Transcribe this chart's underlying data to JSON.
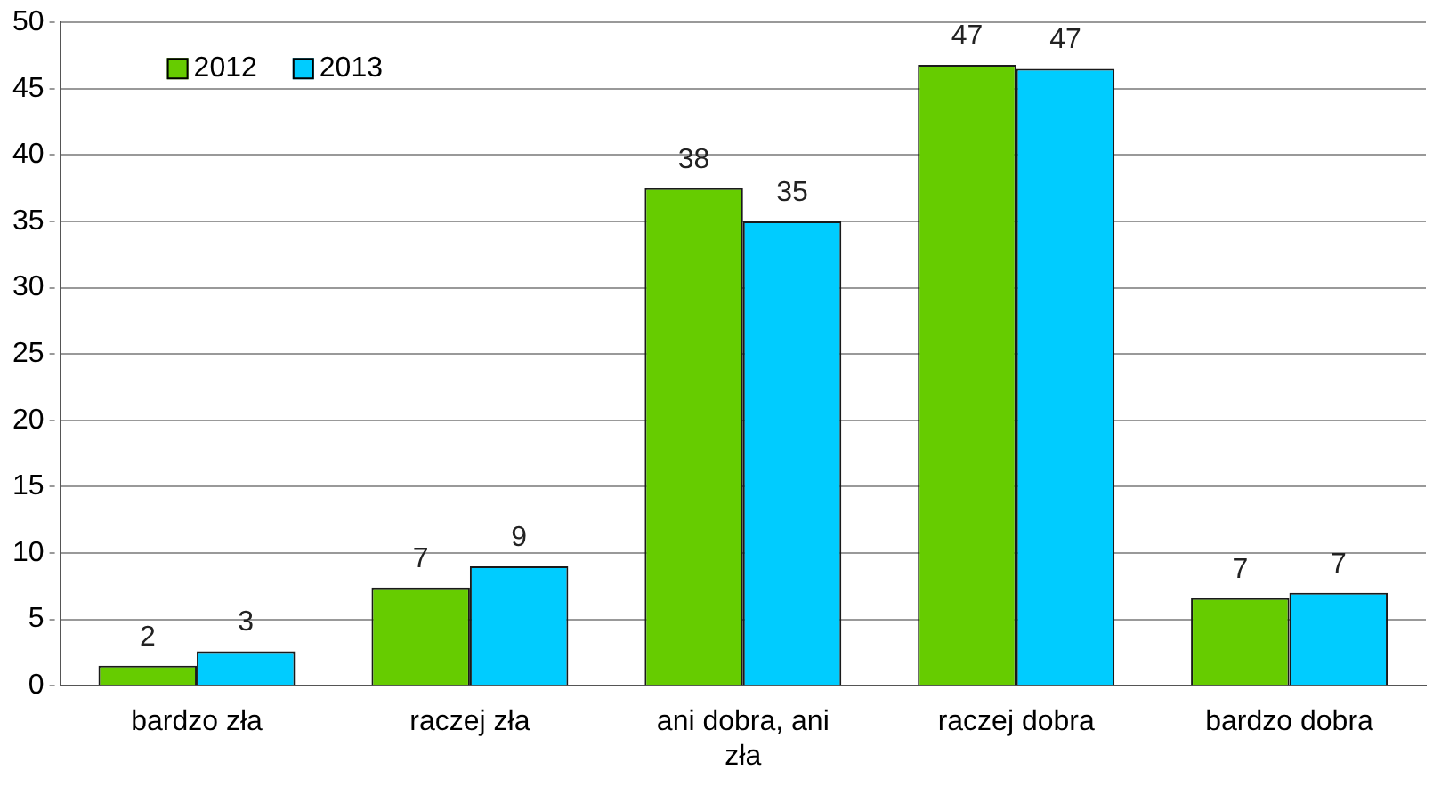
{
  "chart_data": {
    "type": "bar",
    "categories": [
      "bardzo zła",
      "raczej zła",
      "ani dobra, ani zła",
      "raczej dobra",
      "bardzo dobra"
    ],
    "series": [
      {
        "name": "2012",
        "color": "#66cc00",
        "values": [
          1.5,
          7.4,
          37.5,
          46.8,
          6.6
        ],
        "value_labels": [
          "2",
          "7",
          "38",
          "47",
          "7"
        ]
      },
      {
        "name": "2013",
        "color": "#00ccff",
        "values": [
          2.6,
          9,
          35,
          46.5,
          7
        ],
        "value_labels": [
          "3",
          "9",
          "35",
          "47",
          "7"
        ]
      }
    ],
    "ylim": [
      0,
      50
    ],
    "yticks": [
      0,
      5,
      10,
      15,
      20,
      25,
      30,
      35,
      40,
      45,
      50
    ],
    "grid": "y",
    "legend": "top left"
  }
}
